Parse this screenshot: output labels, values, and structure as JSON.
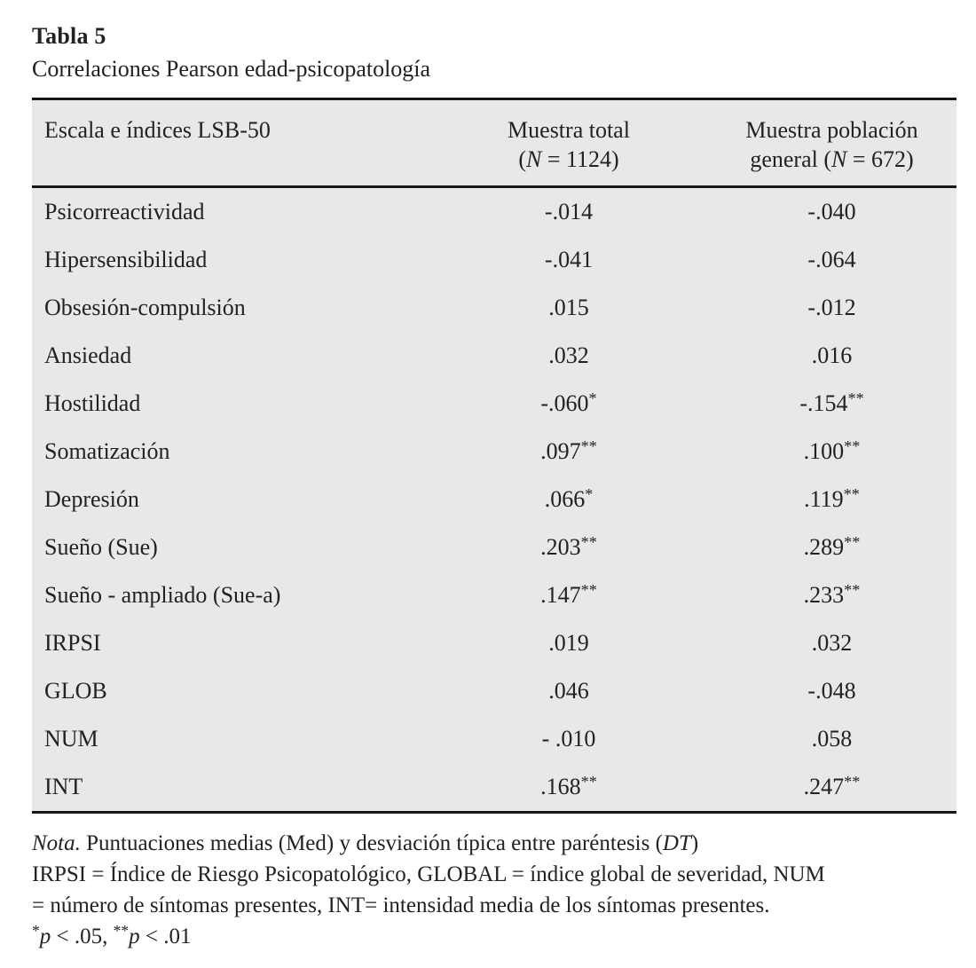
{
  "page": {
    "title": "Tabla 5",
    "subtitle": "Correlaciones Pearson edad-psicopatología"
  },
  "table": {
    "header": {
      "col1": "Escala e índices LSB-50",
      "col2": {
        "line1": "Muestra total",
        "pre": "(",
        "italic": "N",
        "post": " = 1124)"
      },
      "col3": {
        "line1": "Muestra población",
        "pre": "general (",
        "italic": "N",
        "post": " = 672)"
      }
    },
    "rows": [
      {
        "label": "Psicorreactividad",
        "total": "-.014",
        "total_sig": "",
        "general": "-.040",
        "general_sig": ""
      },
      {
        "label": "Hipersensibilidad",
        "total": "-.041",
        "total_sig": "",
        "general": "-.064",
        "general_sig": ""
      },
      {
        "label": "Obsesión-compulsión",
        "total": ".015",
        "total_sig": "",
        "general": "-.012",
        "general_sig": ""
      },
      {
        "label": "Ansiedad",
        "total": ".032",
        "total_sig": "",
        "general": ".016",
        "general_sig": ""
      },
      {
        "label": "Hostilidad",
        "total": "-.060",
        "total_sig": "*",
        "general": "-.154",
        "general_sig": "**"
      },
      {
        "label": "Somatización",
        "total": ".097",
        "total_sig": "**",
        "general": ".100",
        "general_sig": "**"
      },
      {
        "label": "Depresión",
        "total": ".066",
        "total_sig": "*",
        "general": ".119",
        "general_sig": "**"
      },
      {
        "label": "Sueño (Sue)",
        "total": ".203",
        "total_sig": "**",
        "general": ".289",
        "general_sig": "**"
      },
      {
        "label": "Sueño - ampliado (Sue-a)",
        "total": ".147",
        "total_sig": "**",
        "general": ".233",
        "general_sig": "**"
      },
      {
        "label": "IRPSI",
        "total": ".019",
        "total_sig": "",
        "general": ".032",
        "general_sig": ""
      },
      {
        "label": "GLOB",
        "total": ".046",
        "total_sig": "",
        "general": "-.048",
        "general_sig": ""
      },
      {
        "label": "NUM",
        "total": "- .010",
        "total_sig": "",
        "general": ".058",
        "general_sig": ""
      },
      {
        "label": "INT",
        "total": ".168",
        "total_sig": "**",
        "general": ".247",
        "general_sig": "**"
      }
    ]
  },
  "notes": {
    "line1": {
      "italic1": "Nota.",
      "text1": " Puntuaciones medias (Med) y desviación típica entre paréntesis (",
      "italic2": "DT",
      "text2": ")"
    },
    "line2": "IRPSI = Índice de Riesgo Psicopatológico, GLOBAL = índice global de severidad, NUM",
    "line3": "= número de síntomas presentes, INT= intensidad media de los síntomas presentes.",
    "line4": {
      "sup1": "*",
      "italic1": "p",
      "text1": " < .05, ",
      "sup2": "**",
      "italic2": "p",
      "text2": " < .01"
    }
  },
  "colors": {
    "table_background": "#e8e8e8",
    "rule": "#161616",
    "text": "#222222"
  }
}
